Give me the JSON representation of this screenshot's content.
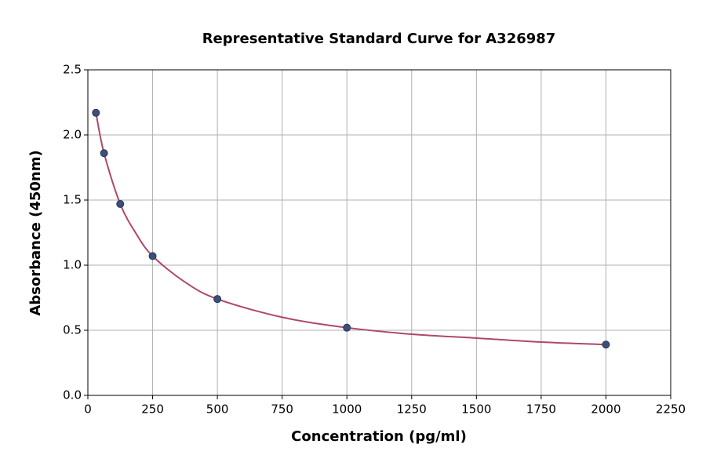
{
  "chart_data": {
    "type": "scatter",
    "title": "Representative Standard Curve for A326987",
    "x_label": "Concentration (pg/ml)",
    "y_label": "Absorbance (450nm)",
    "xlim": [
      0,
      2250
    ],
    "xticks": [
      0,
      250,
      500,
      750,
      1000,
      1250,
      1500,
      1750,
      2000,
      2250
    ],
    "ylim": [
      0,
      2.5
    ],
    "yticks": [
      {
        "value": 0,
        "label": "0.0"
      },
      0.5,
      {
        "value": 1,
        "label": "1.0"
      },
      1.5,
      {
        "value": 2,
        "label": "2.0"
      },
      2.5
    ],
    "grid": true,
    "series": [
      {
        "mode": "line",
        "color": "#b0476d",
        "x": [
          31.25,
          62.5,
          125,
          187,
          250,
          375,
          500,
          750,
          1000,
          1250,
          1500,
          1750,
          2000
        ],
        "values": [
          2.17,
          1.86,
          1.47,
          1.24,
          1.07,
          0.87,
          0.74,
          0.6,
          0.52,
          0.47,
          0.44,
          0.41,
          0.39
        ]
      },
      {
        "mode": "markers",
        "color": "#3b4f7e",
        "x": [
          31.25,
          62.5,
          125,
          250,
          500,
          1000,
          2000
        ],
        "values": [
          2.17,
          1.86,
          1.47,
          1.07,
          0.74,
          0.52,
          0.39
        ]
      }
    ]
  }
}
